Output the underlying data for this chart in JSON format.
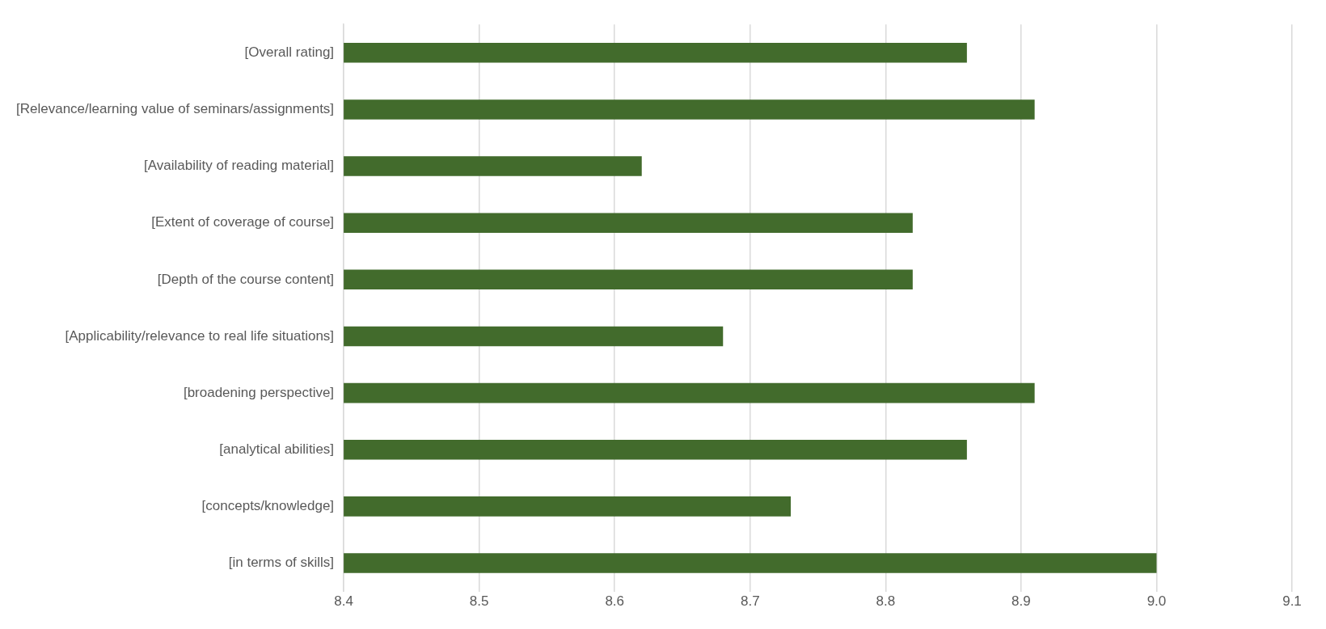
{
  "chart_data": {
    "type": "bar",
    "orientation": "horizontal",
    "categories": [
      "[Overall rating]",
      "[Relevance/learning value of seminars/assignments]",
      "[Availability of reading material]",
      "[Extent of coverage of course]",
      "[Depth of the course content]",
      "[Applicability/relevance to real life situations]",
      "[broadening perspective]",
      "[analytical abilities]",
      "[concepts/knowledge]",
      "[in terms of skills]"
    ],
    "values": [
      8.86,
      8.91,
      8.62,
      8.82,
      8.82,
      8.68,
      8.91,
      8.86,
      8.73,
      9.0
    ],
    "color": "#426b2c",
    "xlim": [
      8.4,
      9.1
    ],
    "xticks": [
      {
        "value": 8.4,
        "label": "8.4"
      },
      {
        "value": 8.5,
        "label": "8.5"
      },
      {
        "value": 8.6,
        "label": "8.6"
      },
      {
        "value": 8.7,
        "label": "8.7"
      },
      {
        "value": 8.8,
        "label": "8.8"
      },
      {
        "value": 8.9,
        "label": "8.9"
      },
      {
        "value": 9.0,
        "label": "9.0"
      },
      {
        "value": 9.1,
        "label": "9.1"
      }
    ],
    "grid": "x",
    "legend": false
  }
}
